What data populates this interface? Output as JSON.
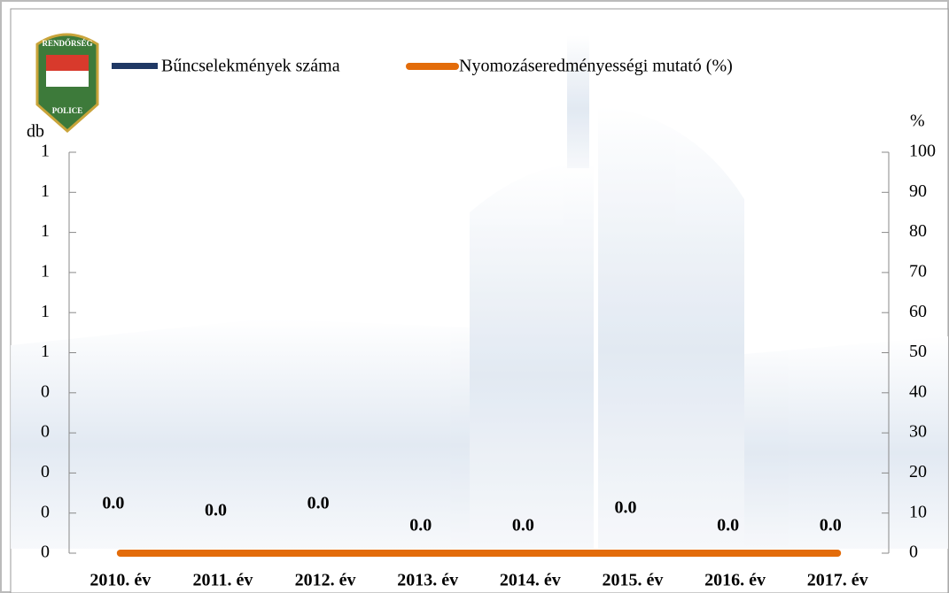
{
  "chart_data": {
    "type": "bar",
    "categories": [
      "2010. év",
      "2011. év",
      "2012. év",
      "2013. év",
      "2014. év",
      "2015. év",
      "2016. év",
      "2017. év"
    ],
    "series": [
      {
        "name": "Bűncselekmények száma",
        "color": "#1f3864",
        "type": "bar",
        "values": [
          0,
          0,
          0,
          0,
          0,
          0,
          0,
          0
        ],
        "value_labels": [
          "0.0",
          "0.0",
          "0.0",
          "0.0",
          "0.0",
          "0.0",
          "0.0",
          "0.0"
        ]
      },
      {
        "name": "Nyomozáseredményességi mutató (%)",
        "color": "#e36c0a",
        "type": "line",
        "axis": "y2",
        "values": [
          0,
          0,
          0,
          0,
          0,
          0,
          0,
          0
        ]
      }
    ],
    "ylabel": "db",
    "y2label": "%",
    "ylim": [
      0,
      1
    ],
    "yticks": [
      0,
      {
        "value": 0.1,
        "label": "0"
      },
      {
        "value": 0.2,
        "label": "0"
      },
      {
        "value": 0.3,
        "label": "0"
      },
      {
        "value": 0.4,
        "label": "0"
      },
      {
        "value": 0.5,
        "label": "1"
      },
      {
        "value": 0.6,
        "label": "1"
      },
      {
        "value": 0.7,
        "label": "1"
      },
      {
        "value": 0.8,
        "label": "1"
      },
      {
        "value": 0.9,
        "label": "1"
      },
      1
    ],
    "y2lim": [
      0,
      100
    ],
    "y2ticks": [
      0,
      10,
      20,
      30,
      40,
      50,
      60,
      70,
      80,
      90,
      100
    ],
    "logo_text": [
      "RENDŐRSÉG",
      "POLICE"
    ]
  }
}
